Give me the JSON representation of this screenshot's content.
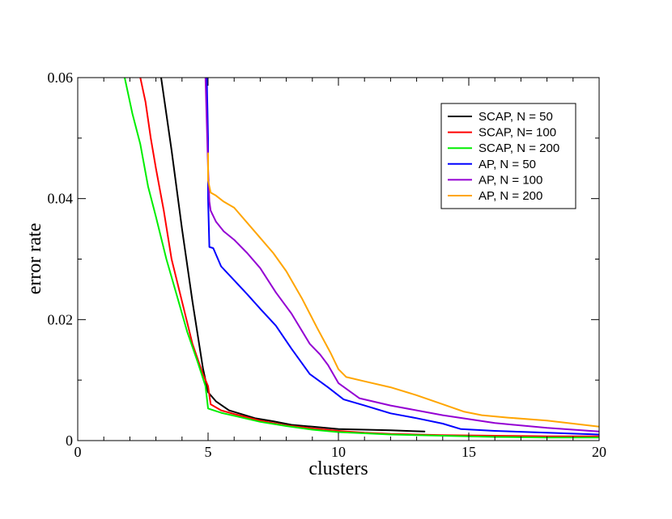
{
  "chart_data": {
    "type": "line",
    "title": "",
    "xlabel": "clusters",
    "ylabel": "error rate",
    "xlim": [
      0,
      20
    ],
    "ylim": [
      0,
      0.06
    ],
    "x_ticks": [
      0,
      5,
      10,
      15,
      20
    ],
    "y_ticks": [
      0,
      0.02,
      0.04,
      0.06
    ],
    "x_tick_labels": [
      "0",
      "5",
      "10",
      "15",
      "20"
    ],
    "y_tick_labels": [
      "0",
      "0.02",
      "0.04",
      "0.06"
    ],
    "grid": false,
    "legend_position": "top-right",
    "series": [
      {
        "name": "SCAP, N = 50",
        "color": "#000000",
        "x": [
          3.2,
          3.6,
          4.0,
          4.4,
          4.8,
          5.0,
          5.1,
          5.3,
          5.8,
          6.8,
          7.5,
          8.2,
          9.0,
          10.0,
          11.0,
          12.0,
          13.3
        ],
        "y": [
          0.06,
          0.048,
          0.035,
          0.023,
          0.012,
          0.008,
          0.0075,
          0.0065,
          0.005,
          0.0037,
          0.0032,
          0.0026,
          0.0023,
          0.0019,
          0.0018,
          0.0017,
          0.0015
        ]
      },
      {
        "name": "SCAP, N= 100",
        "color": "#ff0000",
        "x": [
          2.4,
          2.6,
          2.8,
          3.0,
          3.3,
          3.6,
          4.0,
          4.4,
          4.8,
          5.0,
          5.1,
          5.5,
          6.0,
          7.0,
          8.0,
          9.0,
          10.0,
          11.0,
          12.0,
          14.0,
          16.0,
          18.0,
          20.0
        ],
        "y": [
          0.06,
          0.056,
          0.05,
          0.045,
          0.038,
          0.03,
          0.023,
          0.016,
          0.011,
          0.009,
          0.006,
          0.005,
          0.0044,
          0.0033,
          0.0025,
          0.002,
          0.0016,
          0.0013,
          0.0011,
          0.0009,
          0.0008,
          0.0007,
          0.0007
        ]
      },
      {
        "name": "SCAP, N = 200",
        "color": "#00ee00",
        "x": [
          1.8,
          2.1,
          2.4,
          2.7,
          3.0,
          3.4,
          3.8,
          4.2,
          4.6,
          4.9,
          5.0,
          5.5,
          6.0,
          7.0,
          8.0,
          9.0,
          10.0,
          11.0,
          12.0,
          14.0,
          16.0,
          18.0,
          20.0
        ],
        "y": [
          0.06,
          0.054,
          0.049,
          0.042,
          0.037,
          0.03,
          0.024,
          0.018,
          0.013,
          0.009,
          0.0053,
          0.0046,
          0.0041,
          0.0031,
          0.0024,
          0.0018,
          0.0014,
          0.0012,
          0.001,
          0.0008,
          0.0006,
          0.0005,
          0.0005
        ]
      },
      {
        "name": "AP, N = 50",
        "color": "#0000ff",
        "x": [
          4.95,
          5.0,
          5.0,
          5.05,
          5.2,
          5.5,
          6.0,
          6.5,
          7.0,
          7.6,
          8.2,
          8.9,
          9.6,
          10.2,
          11.0,
          12.0,
          13.0,
          14.0,
          14.7,
          16.0,
          18.0,
          20.0
        ],
        "y": [
          0.06,
          0.05,
          0.04,
          0.032,
          0.0318,
          0.0288,
          0.0265,
          0.0242,
          0.0218,
          0.019,
          0.0152,
          0.011,
          0.0088,
          0.0068,
          0.0058,
          0.0045,
          0.0037,
          0.0028,
          0.0019,
          0.0016,
          0.0013,
          0.001
        ]
      },
      {
        "name": "AP, N = 100",
        "color": "#9400d3",
        "x": [
          4.9,
          5.0,
          5.05,
          5.1,
          5.3,
          5.6,
          6.0,
          6.5,
          7.0,
          7.6,
          8.2,
          8.9,
          9.3,
          9.6,
          10.0,
          10.8,
          12.0,
          14.0,
          16.0,
          18.0,
          20.0
        ],
        "y": [
          0.06,
          0.045,
          0.0395,
          0.038,
          0.0362,
          0.0346,
          0.0332,
          0.031,
          0.0285,
          0.0245,
          0.021,
          0.016,
          0.0142,
          0.0125,
          0.0095,
          0.007,
          0.0058,
          0.0042,
          0.0029,
          0.0021,
          0.0015
        ]
      },
      {
        "name": "AP, N = 200",
        "color": "#ffa500",
        "x": [
          5.0,
          5.0,
          5.05,
          5.1,
          5.3,
          5.6,
          6.0,
          6.8,
          7.5,
          8.0,
          8.6,
          9.2,
          9.7,
          10.0,
          10.3,
          11.0,
          12.0,
          13.0,
          14.0,
          14.8,
          15.5,
          16.5,
          18.0,
          20.0
        ],
        "y": [
          0.0475,
          0.043,
          0.042,
          0.041,
          0.0405,
          0.0395,
          0.0385,
          0.0345,
          0.031,
          0.028,
          0.0235,
          0.0185,
          0.0145,
          0.0118,
          0.0105,
          0.0098,
          0.0088,
          0.0075,
          0.006,
          0.0048,
          0.0042,
          0.0038,
          0.0033,
          0.0023
        ]
      }
    ]
  }
}
